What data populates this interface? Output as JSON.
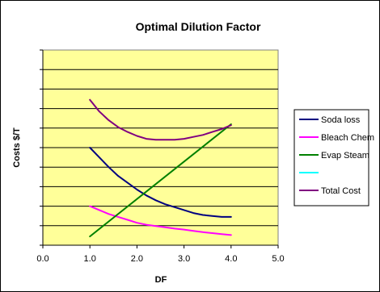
{
  "chart_data": {
    "type": "line",
    "title": "Optimal Dilution Factor",
    "xlabel": "DF",
    "ylabel": "Costs $/T",
    "xlim": [
      0,
      5
    ],
    "ylim": [
      0,
      10
    ],
    "x_ticks": [
      "0.0",
      "1.0",
      "2.0",
      "3.0",
      "4.0",
      "5.0"
    ],
    "grid": "horizontal",
    "plot_background": "#ffff99",
    "legend_position": "right",
    "series": [
      {
        "name": "Soda loss",
        "color": "#000080",
        "x": [
          1.0,
          1.2,
          1.4,
          1.6,
          1.8,
          2.0,
          2.2,
          2.4,
          2.6,
          2.8,
          3.0,
          3.2,
          3.4,
          3.6,
          3.8,
          4.0
        ],
        "y": [
          5.0,
          4.5,
          4.0,
          3.55,
          3.2,
          2.85,
          2.55,
          2.3,
          2.1,
          1.95,
          1.8,
          1.65,
          1.55,
          1.5,
          1.45,
          1.45
        ]
      },
      {
        "name": "Bleach Chem",
        "color": "#ff00ff",
        "x": [
          1.0,
          1.2,
          1.4,
          1.6,
          1.8,
          2.0,
          2.2,
          2.4,
          2.6,
          2.8,
          3.0,
          3.2,
          3.4,
          3.6,
          3.8,
          4.0
        ],
        "y": [
          2.0,
          1.8,
          1.6,
          1.45,
          1.3,
          1.15,
          1.05,
          0.98,
          0.92,
          0.85,
          0.8,
          0.73,
          0.67,
          0.62,
          0.57,
          0.52
        ]
      },
      {
        "name": "Evap Steam",
        "color": "#008000",
        "x": [
          1.0,
          4.0
        ],
        "y": [
          0.45,
          6.2
        ]
      },
      {
        "name": "",
        "color": "#00ffff",
        "x": [],
        "y": []
      },
      {
        "name": "Total Cost",
        "color": "#800080",
        "x": [
          1.0,
          1.2,
          1.4,
          1.6,
          1.8,
          2.0,
          2.2,
          2.4,
          2.6,
          2.8,
          3.0,
          3.2,
          3.4,
          3.6,
          3.8,
          4.0
        ],
        "y": [
          7.45,
          6.85,
          6.4,
          6.05,
          5.8,
          5.6,
          5.45,
          5.4,
          5.4,
          5.4,
          5.45,
          5.55,
          5.65,
          5.8,
          5.95,
          6.15
        ]
      }
    ]
  }
}
